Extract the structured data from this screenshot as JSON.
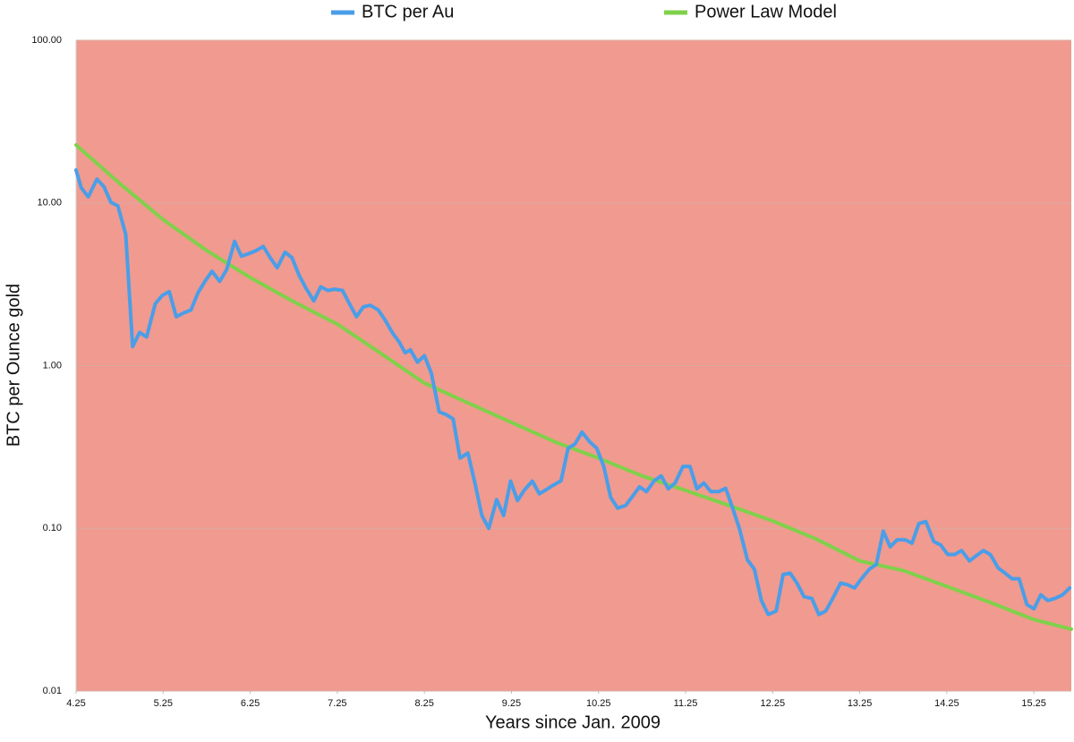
{
  "chart_data": {
    "type": "line",
    "x_label": "Years since Jan. 2009",
    "y_label": "BTC per Ounce gold",
    "yscale": "log",
    "grid": true,
    "legend": "top",
    "background": "#f19a8f",
    "xlim": [
      4.25,
      15.68
    ],
    "ylim": [
      0.01,
      100
    ],
    "xticks": [
      4.25,
      5.25,
      6.25,
      7.25,
      8.25,
      9.25,
      10.25,
      11.25,
      12.25,
      13.25,
      14.25,
      15.25
    ],
    "yticks": [
      {
        "value": 0.01,
        "label": "0.01"
      },
      {
        "value": 0.1,
        "label": "0.10"
      },
      {
        "value": 1,
        "label": "1.00"
      },
      {
        "value": 10,
        "label": "10.00"
      },
      {
        "value": 100,
        "label": "100.00"
      }
    ],
    "series": [
      {
        "name": "BTC per Au",
        "color": "#4a9ee8",
        "x": [
          4.25,
          4.31,
          4.39,
          4.49,
          4.57,
          4.65,
          4.73,
          4.82,
          4.9,
          4.98,
          5.06,
          5.16,
          5.24,
          5.32,
          5.4,
          5.48,
          5.57,
          5.65,
          5.73,
          5.81,
          5.9,
          5.98,
          6.07,
          6.15,
          6.24,
          6.32,
          6.4,
          6.48,
          6.56,
          6.65,
          6.73,
          6.81,
          6.89,
          6.98,
          7.06,
          7.14,
          7.22,
          7.31,
          7.39,
          7.47,
          7.55,
          7.63,
          7.72,
          7.8,
          7.88,
          7.96,
          8.03,
          8.09,
          8.17,
          8.25,
          8.33,
          8.42,
          8.5,
          8.58,
          8.66,
          8.75,
          8.83,
          8.91,
          8.99,
          9.08,
          9.16,
          9.24,
          9.32,
          9.4,
          9.49,
          9.57,
          9.65,
          9.73,
          9.82,
          9.9,
          9.98,
          10.06,
          10.15,
          10.23,
          10.31,
          10.39,
          10.47,
          10.56,
          10.64,
          10.72,
          10.8,
          10.89,
          10.97,
          11.05,
          11.13,
          11.22,
          11.3,
          11.38,
          11.46,
          11.54,
          11.63,
          11.71,
          11.79,
          11.87,
          11.96,
          12.04,
          12.12,
          12.2,
          12.29,
          12.37,
          12.45,
          12.53,
          12.61,
          12.7,
          12.78,
          12.86,
          12.94,
          13.03,
          13.11,
          13.19,
          13.27,
          13.36,
          13.44,
          13.52,
          13.6,
          13.68,
          13.77,
          13.85,
          13.93,
          14.01,
          14.1,
          14.18,
          14.26,
          14.34,
          14.42,
          14.51,
          14.59,
          14.67,
          14.75,
          14.84,
          14.92,
          15.0,
          15.08,
          15.17,
          15.25,
          15.33,
          15.41,
          15.49,
          15.58,
          15.66
        ],
        "values": [
          15.9,
          12.4,
          10.9,
          14.0,
          12.6,
          10.1,
          9.6,
          6.4,
          1.31,
          1.6,
          1.5,
          2.4,
          2.7,
          2.85,
          2.0,
          2.1,
          2.2,
          2.8,
          3.3,
          3.8,
          3.3,
          3.9,
          5.8,
          4.7,
          4.9,
          5.1,
          5.4,
          4.6,
          4.0,
          4.98,
          4.6,
          3.6,
          3.0,
          2.5,
          3.05,
          2.9,
          2.95,
          2.9,
          2.4,
          2.0,
          2.3,
          2.35,
          2.2,
          1.9,
          1.6,
          1.4,
          1.2,
          1.25,
          1.05,
          1.15,
          0.9,
          0.52,
          0.5,
          0.47,
          0.27,
          0.29,
          0.19,
          0.12,
          0.1,
          0.15,
          0.12,
          0.195,
          0.148,
          0.172,
          0.195,
          0.163,
          0.173,
          0.184,
          0.196,
          0.31,
          0.33,
          0.39,
          0.34,
          0.31,
          0.24,
          0.155,
          0.133,
          0.138,
          0.157,
          0.18,
          0.168,
          0.196,
          0.21,
          0.175,
          0.19,
          0.24,
          0.24,
          0.175,
          0.19,
          0.168,
          0.168,
          0.176,
          0.133,
          0.099,
          0.064,
          0.056,
          0.036,
          0.0295,
          0.031,
          0.052,
          0.053,
          0.046,
          0.038,
          0.037,
          0.0295,
          0.031,
          0.037,
          0.046,
          0.045,
          0.043,
          0.049,
          0.056,
          0.06,
          0.096,
          0.077,
          0.085,
          0.085,
          0.081,
          0.107,
          0.11,
          0.083,
          0.079,
          0.069,
          0.069,
          0.073,
          0.063,
          0.068,
          0.073,
          0.069,
          0.057,
          0.053,
          0.049,
          0.049,
          0.034,
          0.032,
          0.039,
          0.036,
          0.037,
          0.039,
          0.043
        ]
      },
      {
        "name": "Power Law Model",
        "color": "#7fd14a",
        "x": [
          4.25,
          4.75,
          5.25,
          5.75,
          6.25,
          6.75,
          7.25,
          7.75,
          8.25,
          8.75,
          9.25,
          9.75,
          10.25,
          10.75,
          11.25,
          11.75,
          12.25,
          12.75,
          13.25,
          13.75,
          14.25,
          14.75,
          15.25,
          15.68
        ],
        "values": [
          22.7,
          13.2,
          7.9,
          5.1,
          3.48,
          2.47,
          1.8,
          1.19,
          0.78,
          0.59,
          0.448,
          0.34,
          0.27,
          0.21,
          0.171,
          0.138,
          0.111,
          0.086,
          0.063,
          0.055,
          0.044,
          0.035,
          0.0275,
          0.024
        ]
      }
    ]
  }
}
